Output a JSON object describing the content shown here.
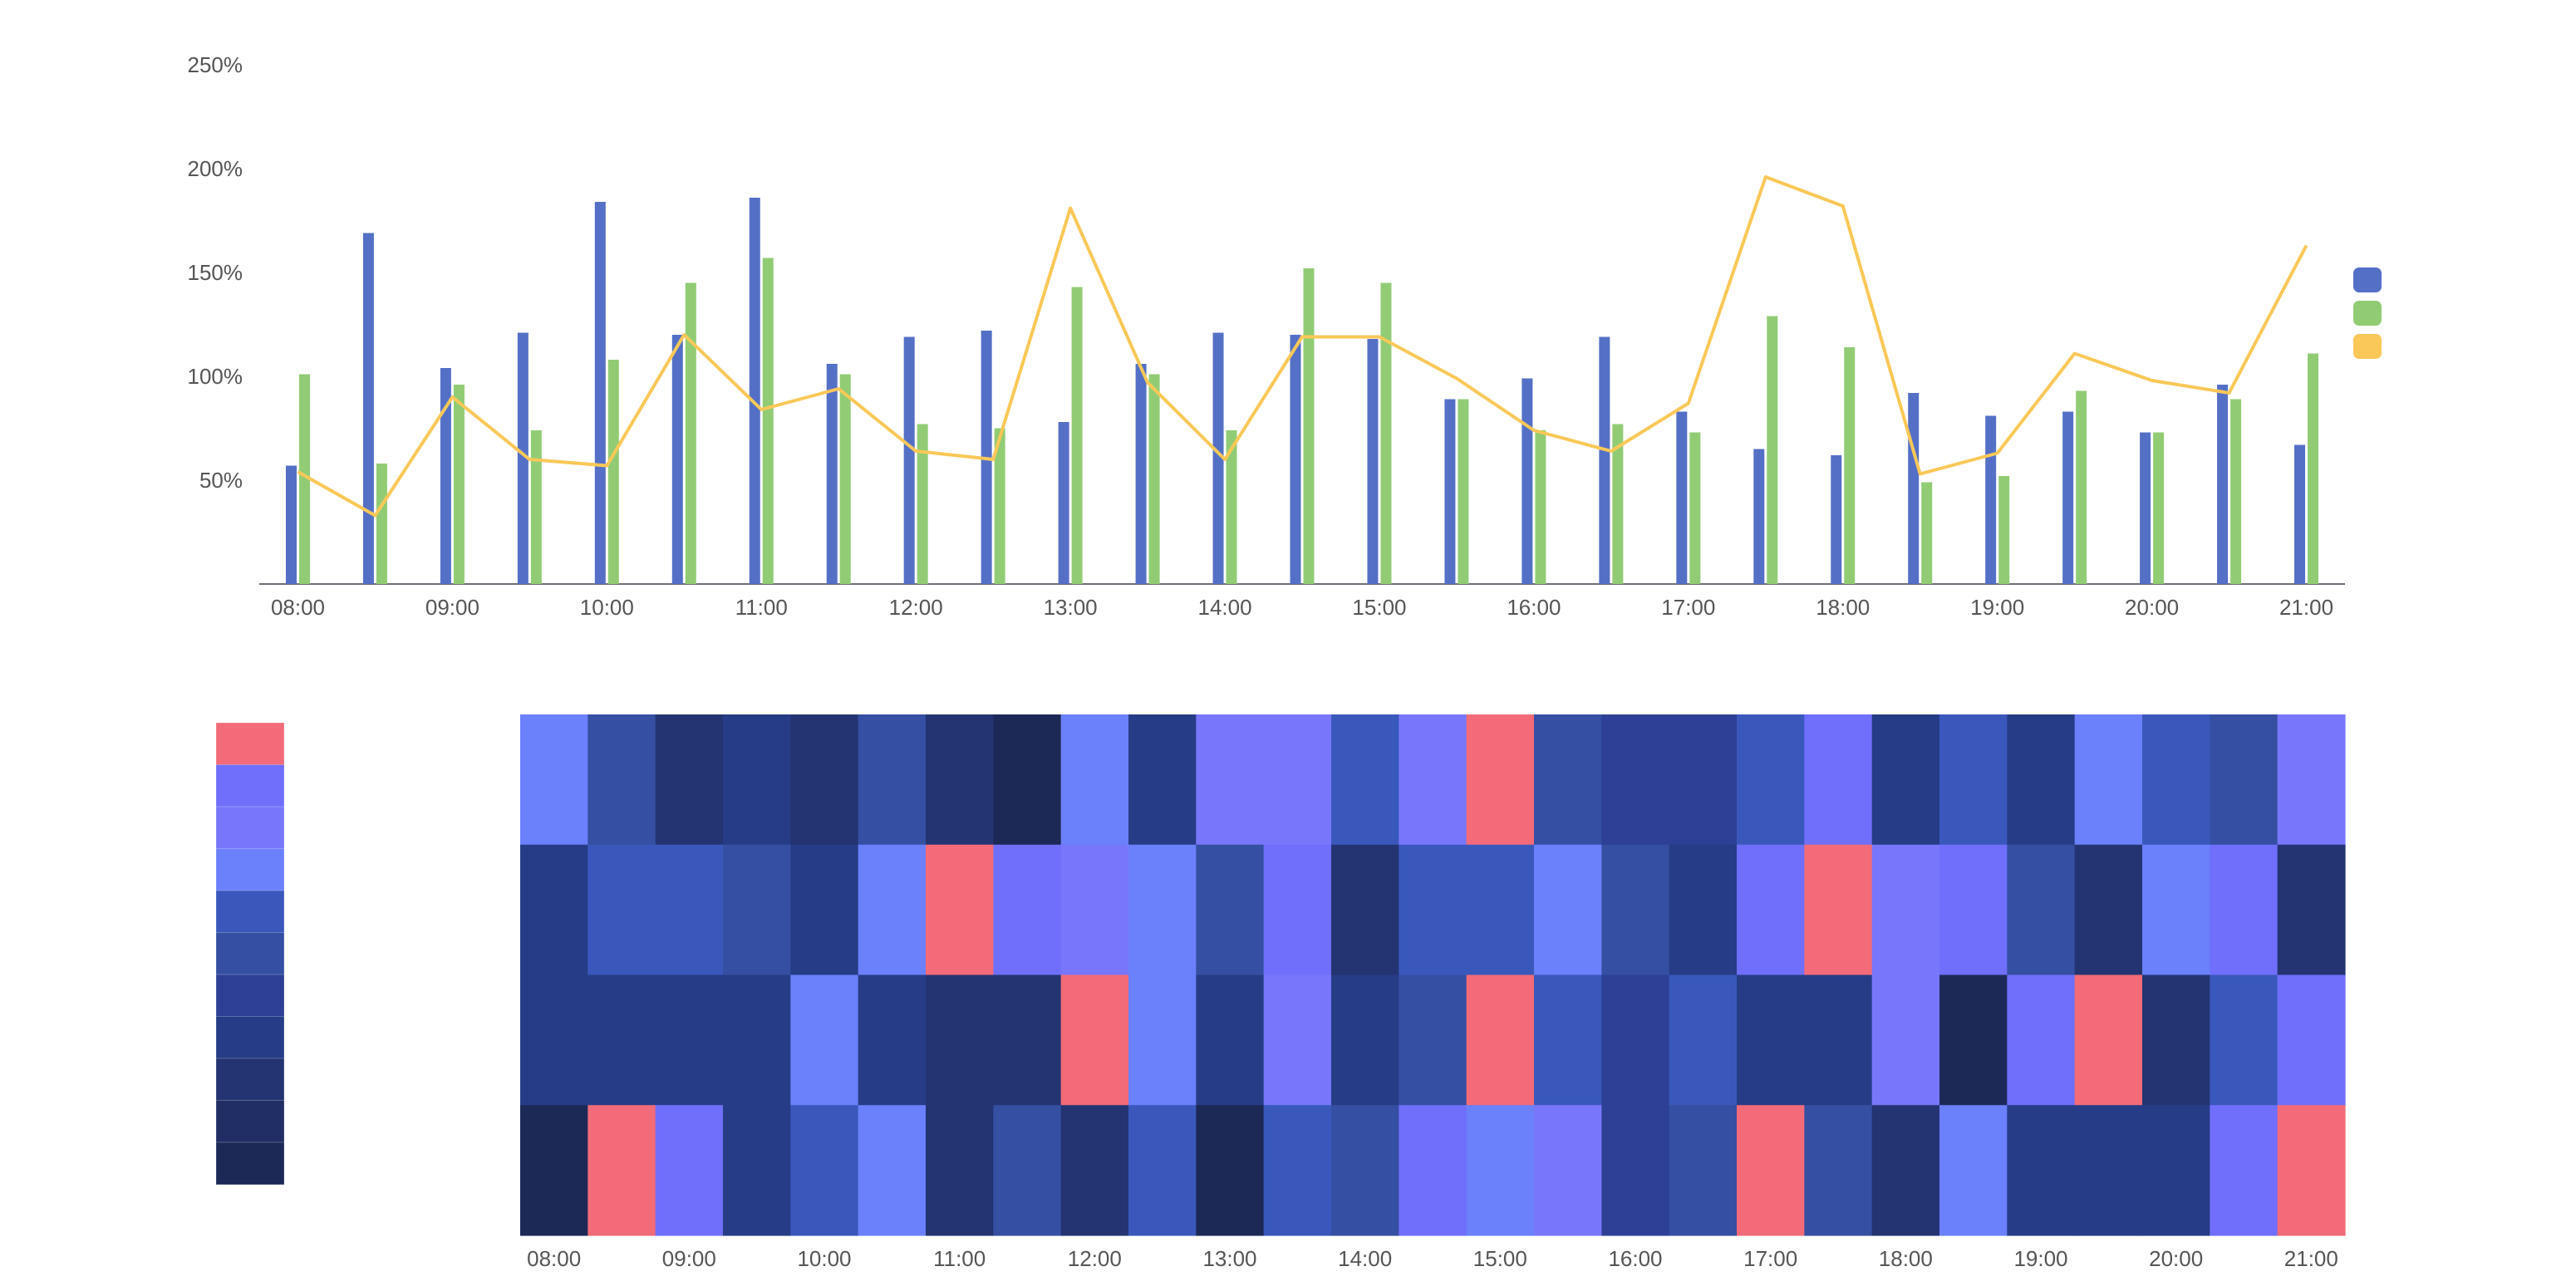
{
  "colors": {
    "series_blue": "#5470c6",
    "series_green": "#91cc75",
    "series_orange": "#fac858",
    "axis": "#6e7079"
  },
  "chart_data": [
    {
      "type": "bar",
      "x_type": "time",
      "x_ticks": [
        "08:00",
        "09:00",
        "10:00",
        "11:00",
        "12:00",
        "13:00",
        "14:00",
        "15:00",
        "16:00",
        "17:00",
        "18:00",
        "19:00",
        "20:00",
        "21:00"
      ],
      "x": [
        "08:00",
        "08:30",
        "09:00",
        "09:30",
        "10:00",
        "10:30",
        "11:00",
        "11:30",
        "12:00",
        "12:30",
        "13:00",
        "13:30",
        "14:00",
        "14:30",
        "15:00",
        "15:30",
        "16:00",
        "16:30",
        "17:00",
        "17:30",
        "18:00",
        "18:30",
        "19:00",
        "19:30",
        "20:00",
        "20:30",
        "21:00"
      ],
      "y_ticks": [
        "50%",
        "100%",
        "150%",
        "200%",
        "250%"
      ],
      "ylim": [
        0,
        250
      ],
      "y_unit": "%",
      "legend": "right",
      "grid": false,
      "series": [
        {
          "type": "bar",
          "color": "#5470c6",
          "values": [
            57,
            169,
            104,
            121,
            184,
            120,
            186,
            106,
            119,
            122,
            78,
            106,
            121,
            120,
            118,
            89,
            99,
            119,
            83,
            65,
            62,
            92,
            81,
            83,
            73,
            96,
            67
          ]
        },
        {
          "type": "bar",
          "color": "#91cc75",
          "values": [
            101,
            58,
            96,
            74,
            108,
            145,
            157,
            101,
            77,
            75,
            143,
            101,
            74,
            152,
            145,
            89,
            74,
            77,
            73,
            129,
            114,
            49,
            52,
            93,
            73,
            89,
            111
          ]
        },
        {
          "type": "line",
          "color": "#fac858",
          "values": [
            54,
            33,
            90,
            60,
            57,
            120,
            84,
            94,
            64,
            60,
            181,
            97,
            60,
            119,
            119,
            99,
            74,
            64,
            87,
            196,
            182,
            53,
            63,
            111,
            98,
            92,
            163
          ]
        }
      ]
    },
    {
      "type": "heatmap",
      "x_ticks": [
        "08:00",
        "09:00",
        "10:00",
        "11:00",
        "12:00",
        "13:00",
        "14:00",
        "15:00",
        "16:00",
        "17:00",
        "18:00",
        "19:00",
        "20:00",
        "21:00"
      ],
      "columns": 27,
      "rows": 4,
      "scale_colors": [
        "#1c2957",
        "#212e66",
        "#243472",
        "#263c86",
        "#2d4095",
        "#354fa2",
        "#3a58bc",
        "#6b80fb",
        "#7877fb",
        "#6f6ffb",
        "#f36b78"
      ],
      "legend_colors": [
        "#f36b78",
        "#6f6ffb",
        "#7877fb",
        "#6b80fb",
        "#3a58bc",
        "#354fa2",
        "#2d4095",
        "#263c86",
        "#243472",
        "#212e66",
        "#1c2957"
      ],
      "values": [
        [
          7,
          5,
          2,
          3,
          2,
          5,
          2,
          0,
          7,
          3,
          8,
          8,
          6,
          8,
          10,
          5,
          4,
          4,
          6,
          9,
          3,
          6,
          3,
          7,
          6,
          5,
          8
        ],
        [
          3,
          6,
          6,
          5,
          3,
          7,
          10,
          9,
          8,
          7,
          5,
          9,
          2,
          6,
          6,
          7,
          5,
          3,
          9,
          10,
          8,
          9,
          5,
          2,
          7,
          9,
          2
        ],
        [
          3,
          3,
          3,
          3,
          7,
          3,
          2,
          2,
          10,
          7,
          3,
          8,
          3,
          5,
          10,
          6,
          4,
          6,
          3,
          3,
          8,
          0,
          9,
          10,
          2,
          6,
          9
        ],
        [
          0,
          10,
          9,
          3,
          6,
          7,
          2,
          5,
          2,
          6,
          0,
          6,
          5,
          9,
          7,
          8,
          4,
          5,
          10,
          5,
          2,
          7,
          3,
          3,
          3,
          9,
          10
        ]
      ]
    }
  ]
}
